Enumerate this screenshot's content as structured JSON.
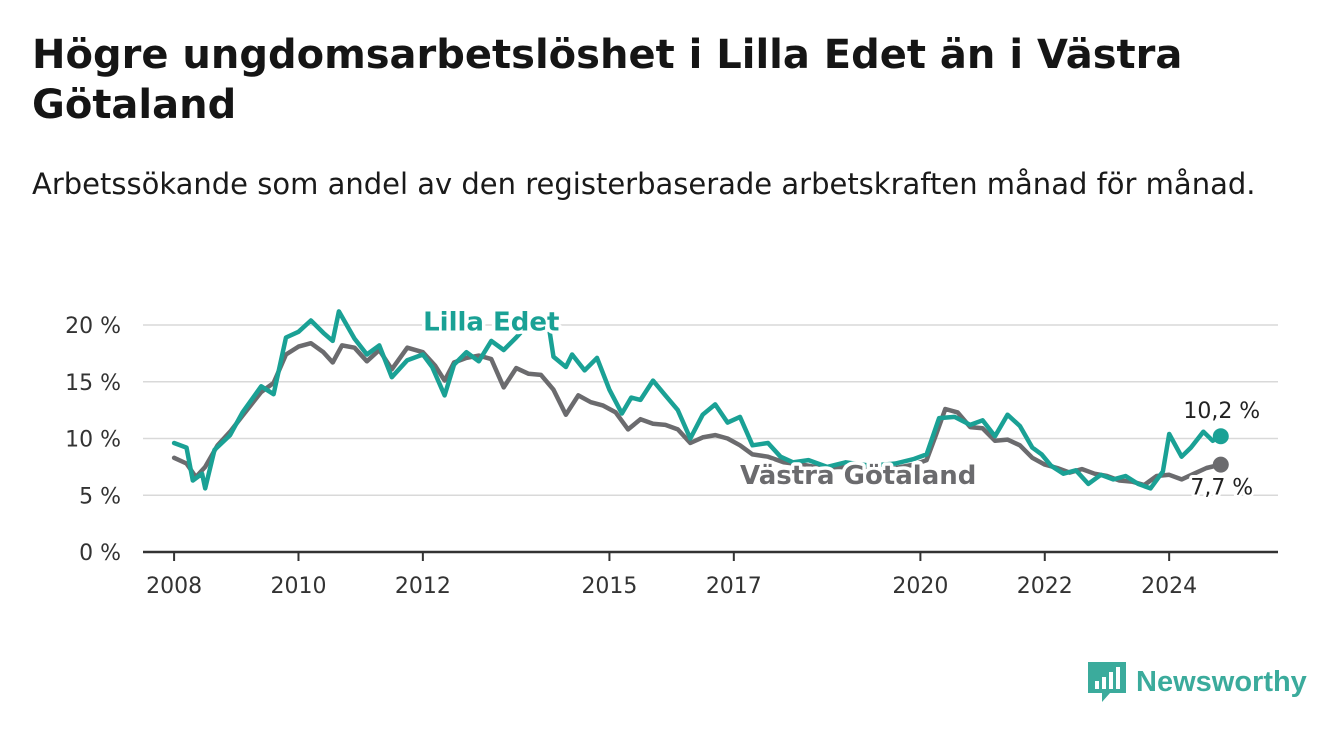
{
  "title": "Högre ungdomsarbetslöshet i Lilla Edet än i Västra Götaland",
  "subtitle": "Arbetssökande som andel av den registerbaserade arbetskraften månad för månad.",
  "brand": {
    "name": "Newsworthy",
    "icon": "bar-chart-logo-icon",
    "color": "#3bab9c"
  },
  "chart_data": {
    "type": "line",
    "title": "Högre ungdomsarbetslöshet i Lilla Edet än i Västra Götaland",
    "xlabel": "",
    "ylabel": "",
    "ylim": [
      0,
      20
    ],
    "xlim": [
      2007.5,
      2025.75
    ],
    "y_ticks": [
      0,
      5,
      10,
      15,
      20
    ],
    "y_tick_labels": [
      "0 %",
      "5 %",
      "10 %",
      "15 %",
      "20 %"
    ],
    "x_ticks": [
      2008,
      2010,
      2012,
      2015,
      2017,
      2020,
      2022,
      2024
    ],
    "x_tick_labels": [
      "2008",
      "2010",
      "2012",
      "2015",
      "2017",
      "2020",
      "2022",
      "2024"
    ],
    "grid": true,
    "series": [
      {
        "name": "Lilla Edet",
        "color": "#1aa195",
        "end_label": "10,2 %",
        "points": [
          [
            2008.0,
            9.6
          ],
          [
            2008.2,
            9.2
          ],
          [
            2008.3,
            6.3
          ],
          [
            2008.45,
            6.9
          ],
          [
            2008.5,
            5.6
          ],
          [
            2008.65,
            9.0
          ],
          [
            2008.9,
            10.3
          ],
          [
            2009.1,
            12.3
          ],
          [
            2009.4,
            14.6
          ],
          [
            2009.6,
            13.9
          ],
          [
            2009.8,
            18.9
          ],
          [
            2010.0,
            19.4
          ],
          [
            2010.2,
            20.4
          ],
          [
            2010.4,
            19.3
          ],
          [
            2010.55,
            18.6
          ],
          [
            2010.65,
            21.2
          ],
          [
            2010.9,
            18.8
          ],
          [
            2011.1,
            17.4
          ],
          [
            2011.3,
            18.2
          ],
          [
            2011.5,
            15.4
          ],
          [
            2011.75,
            16.9
          ],
          [
            2012.0,
            17.4
          ],
          [
            2012.15,
            16.3
          ],
          [
            2012.35,
            13.8
          ],
          [
            2012.5,
            16.5
          ],
          [
            2012.7,
            17.6
          ],
          [
            2012.9,
            16.8
          ],
          [
            2013.1,
            18.6
          ],
          [
            2013.3,
            17.8
          ],
          [
            2013.5,
            18.9
          ],
          [
            2013.65,
            19.8
          ],
          [
            2013.9,
            20.2
          ],
          [
            2014.0,
            20.8
          ],
          [
            2014.1,
            17.2
          ],
          [
            2014.3,
            16.3
          ],
          [
            2014.4,
            17.4
          ],
          [
            2014.6,
            16.0
          ],
          [
            2014.8,
            17.1
          ],
          [
            2015.0,
            14.3
          ],
          [
            2015.2,
            12.2
          ],
          [
            2015.35,
            13.6
          ],
          [
            2015.5,
            13.4
          ],
          [
            2015.7,
            15.1
          ],
          [
            2015.9,
            13.8
          ],
          [
            2016.1,
            12.5
          ],
          [
            2016.3,
            10.0
          ],
          [
            2016.5,
            12.1
          ],
          [
            2016.7,
            13.0
          ],
          [
            2016.9,
            11.4
          ],
          [
            2017.1,
            11.9
          ],
          [
            2017.3,
            9.4
          ],
          [
            2017.55,
            9.6
          ],
          [
            2017.75,
            8.4
          ],
          [
            2017.95,
            7.9
          ],
          [
            2018.2,
            8.1
          ],
          [
            2018.5,
            7.5
          ],
          [
            2018.8,
            7.9
          ],
          [
            2019.2,
            7.6
          ],
          [
            2019.6,
            7.8
          ],
          [
            2019.9,
            8.2
          ],
          [
            2020.1,
            8.6
          ],
          [
            2020.3,
            11.8
          ],
          [
            2020.55,
            11.9
          ],
          [
            2020.8,
            11.2
          ],
          [
            2021.0,
            11.6
          ],
          [
            2021.2,
            10.2
          ],
          [
            2021.4,
            12.1
          ],
          [
            2021.6,
            11.1
          ],
          [
            2021.8,
            9.2
          ],
          [
            2021.95,
            8.6
          ],
          [
            2022.1,
            7.6
          ],
          [
            2022.3,
            6.9
          ],
          [
            2022.5,
            7.2
          ],
          [
            2022.7,
            6.0
          ],
          [
            2022.9,
            6.8
          ],
          [
            2023.1,
            6.4
          ],
          [
            2023.3,
            6.7
          ],
          [
            2023.5,
            6.0
          ],
          [
            2023.7,
            5.6
          ],
          [
            2023.9,
            7.1
          ],
          [
            2024.0,
            10.4
          ],
          [
            2024.2,
            8.4
          ],
          [
            2024.35,
            9.2
          ],
          [
            2024.55,
            10.6
          ],
          [
            2024.7,
            9.8
          ],
          [
            2024.83,
            10.2
          ]
        ]
      },
      {
        "name": "Västra Götaland",
        "color": "#6b6b6e",
        "end_label": "7,7 %",
        "points": [
          [
            2008.0,
            8.3
          ],
          [
            2008.2,
            7.8
          ],
          [
            2008.35,
            6.6
          ],
          [
            2008.5,
            7.5
          ],
          [
            2008.7,
            9.4
          ],
          [
            2008.9,
            10.6
          ],
          [
            2009.1,
            12.0
          ],
          [
            2009.4,
            14.1
          ],
          [
            2009.6,
            14.9
          ],
          [
            2009.8,
            17.4
          ],
          [
            2010.0,
            18.1
          ],
          [
            2010.2,
            18.4
          ],
          [
            2010.4,
            17.6
          ],
          [
            2010.55,
            16.7
          ],
          [
            2010.7,
            18.2
          ],
          [
            2010.9,
            18.0
          ],
          [
            2011.1,
            16.8
          ],
          [
            2011.3,
            17.8
          ],
          [
            2011.5,
            16.1
          ],
          [
            2011.75,
            18.0
          ],
          [
            2012.0,
            17.6
          ],
          [
            2012.2,
            16.4
          ],
          [
            2012.35,
            15.1
          ],
          [
            2012.5,
            16.7
          ],
          [
            2012.7,
            17.1
          ],
          [
            2012.9,
            17.3
          ],
          [
            2013.1,
            17.0
          ],
          [
            2013.3,
            14.5
          ],
          [
            2013.5,
            16.2
          ],
          [
            2013.7,
            15.7
          ],
          [
            2013.9,
            15.6
          ],
          [
            2014.1,
            14.3
          ],
          [
            2014.3,
            12.1
          ],
          [
            2014.5,
            13.8
          ],
          [
            2014.7,
            13.2
          ],
          [
            2014.9,
            12.9
          ],
          [
            2015.1,
            12.3
          ],
          [
            2015.3,
            10.8
          ],
          [
            2015.5,
            11.7
          ],
          [
            2015.7,
            11.3
          ],
          [
            2015.9,
            11.2
          ],
          [
            2016.1,
            10.8
          ],
          [
            2016.3,
            9.6
          ],
          [
            2016.5,
            10.1
          ],
          [
            2016.7,
            10.3
          ],
          [
            2016.9,
            10.0
          ],
          [
            2017.1,
            9.4
          ],
          [
            2017.3,
            8.6
          ],
          [
            2017.55,
            8.4
          ],
          [
            2017.8,
            7.9
          ],
          [
            2018.1,
            7.7
          ],
          [
            2018.4,
            7.4
          ],
          [
            2018.7,
            7.5
          ],
          [
            2019.0,
            7.3
          ],
          [
            2019.3,
            7.2
          ],
          [
            2019.6,
            7.4
          ],
          [
            2019.9,
            7.7
          ],
          [
            2020.1,
            8.1
          ],
          [
            2020.25,
            10.3
          ],
          [
            2020.4,
            12.6
          ],
          [
            2020.6,
            12.3
          ],
          [
            2020.8,
            11.0
          ],
          [
            2021.0,
            10.9
          ],
          [
            2021.2,
            9.8
          ],
          [
            2021.4,
            9.9
          ],
          [
            2021.6,
            9.4
          ],
          [
            2021.8,
            8.3
          ],
          [
            2022.0,
            7.7
          ],
          [
            2022.2,
            7.4
          ],
          [
            2022.4,
            7.0
          ],
          [
            2022.6,
            7.3
          ],
          [
            2022.8,
            6.9
          ],
          [
            2023.0,
            6.7
          ],
          [
            2023.2,
            6.3
          ],
          [
            2023.4,
            6.2
          ],
          [
            2023.6,
            5.9
          ],
          [
            2023.8,
            6.7
          ],
          [
            2024.0,
            6.8
          ],
          [
            2024.2,
            6.4
          ],
          [
            2024.4,
            6.9
          ],
          [
            2024.6,
            7.4
          ],
          [
            2024.83,
            7.7
          ]
        ]
      }
    ],
    "annotations": [
      {
        "text": "Lilla Edet",
        "series": "Lilla Edet",
        "x": 2013.1,
        "y": 20.3
      },
      {
        "text": "Västra Götaland",
        "series": "Västra Götaland",
        "x": 2019.0,
        "y": 6.8
      }
    ]
  }
}
